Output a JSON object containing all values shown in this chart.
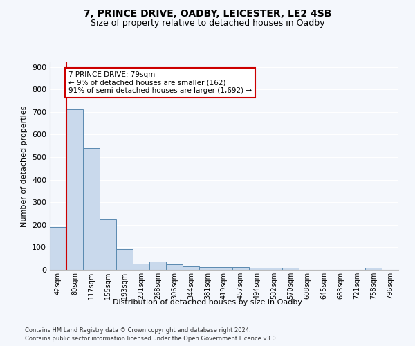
{
  "title1": "7, PRINCE DRIVE, OADBY, LEICESTER, LE2 4SB",
  "title2": "Size of property relative to detached houses in Oadby",
  "xlabel": "Distribution of detached houses by size in Oadby",
  "ylabel": "Number of detached properties",
  "bin_labels": [
    "42sqm",
    "80sqm",
    "117sqm",
    "155sqm",
    "193sqm",
    "231sqm",
    "268sqm",
    "306sqm",
    "344sqm",
    "381sqm",
    "419sqm",
    "457sqm",
    "494sqm",
    "532sqm",
    "570sqm",
    "608sqm",
    "645sqm",
    "683sqm",
    "721sqm",
    "758sqm",
    "796sqm"
  ],
  "bar_heights": [
    190,
    710,
    540,
    225,
    92,
    27,
    38,
    25,
    14,
    13,
    13,
    12,
    10,
    10,
    8,
    0,
    0,
    0,
    0,
    10,
    0
  ],
  "bar_color": "#c9d9ec",
  "bar_edge_color": "#5a8ab0",
  "marker_line_color": "#cc0000",
  "annotation_text": "7 PRINCE DRIVE: 79sqm\n← 9% of detached houses are smaller (162)\n91% of semi-detached houses are larger (1,692) →",
  "annotation_box_color": "#ffffff",
  "annotation_box_edge_color": "#cc0000",
  "ylim": [
    0,
    920
  ],
  "yticks": [
    0,
    100,
    200,
    300,
    400,
    500,
    600,
    700,
    800,
    900
  ],
  "footnote1": "Contains HM Land Registry data © Crown copyright and database right 2024.",
  "footnote2": "Contains public sector information licensed under the Open Government Licence v3.0.",
  "background_color": "#f4f7fc",
  "plot_bg_color": "#f4f7fc",
  "grid_color": "#ffffff",
  "title1_fontsize": 10,
  "title2_fontsize": 9
}
